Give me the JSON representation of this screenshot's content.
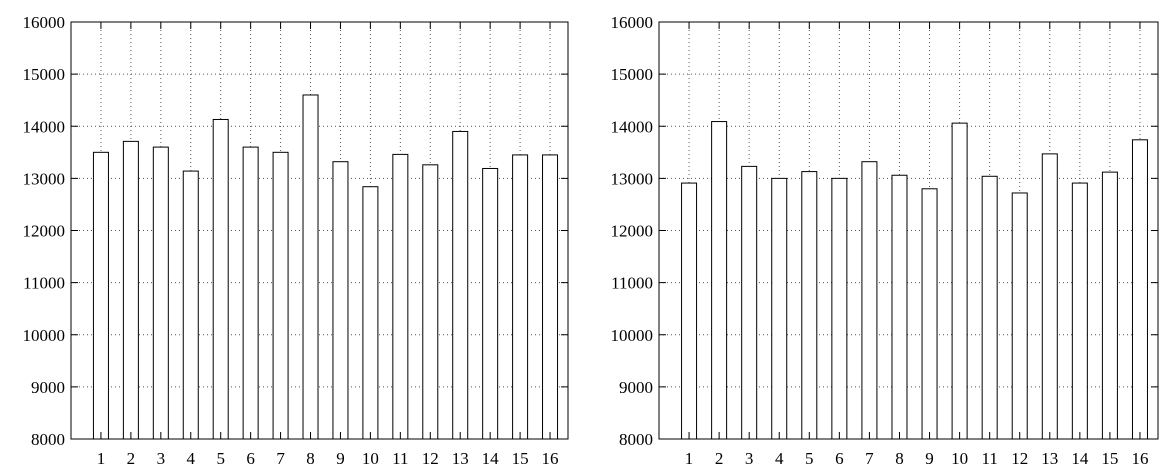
{
  "chart_data": [
    {
      "type": "bar",
      "title": "",
      "xlabel": "",
      "ylabel": "",
      "categories": [
        "1",
        "2",
        "3",
        "4",
        "5",
        "6",
        "7",
        "8",
        "9",
        "10",
        "11",
        "12",
        "13",
        "14",
        "15",
        "16"
      ],
      "values": [
        13500,
        13710,
        13600,
        13140,
        14130,
        13600,
        13500,
        14600,
        13320,
        12840,
        13460,
        13260,
        13900,
        13190,
        13450,
        13450
      ],
      "ylim": [
        8000,
        16000
      ],
      "yticks": [
        "8000",
        "9000",
        "10000",
        "11000",
        "12000",
        "13000",
        "14000",
        "15000",
        "16000"
      ],
      "grid": true,
      "grid_style": "dotted",
      "bar_fill": "#ffffff",
      "bar_stroke": "#000000"
    },
    {
      "type": "bar",
      "title": "",
      "xlabel": "",
      "ylabel": "",
      "categories": [
        "1",
        "2",
        "3",
        "4",
        "5",
        "6",
        "7",
        "8",
        "9",
        "10",
        "11",
        "12",
        "13",
        "14",
        "15",
        "16"
      ],
      "values": [
        12910,
        14090,
        13230,
        13000,
        13130,
        13000,
        13320,
        13060,
        12800,
        14060,
        13040,
        12720,
        13470,
        12910,
        13120,
        13740
      ],
      "ylim": [
        8000,
        16000
      ],
      "yticks": [
        "8000",
        "9000",
        "10000",
        "11000",
        "12000",
        "13000",
        "14000",
        "15000",
        "16000"
      ],
      "grid": true,
      "grid_style": "dotted",
      "bar_fill": "#ffffff",
      "bar_stroke": "#000000"
    }
  ]
}
